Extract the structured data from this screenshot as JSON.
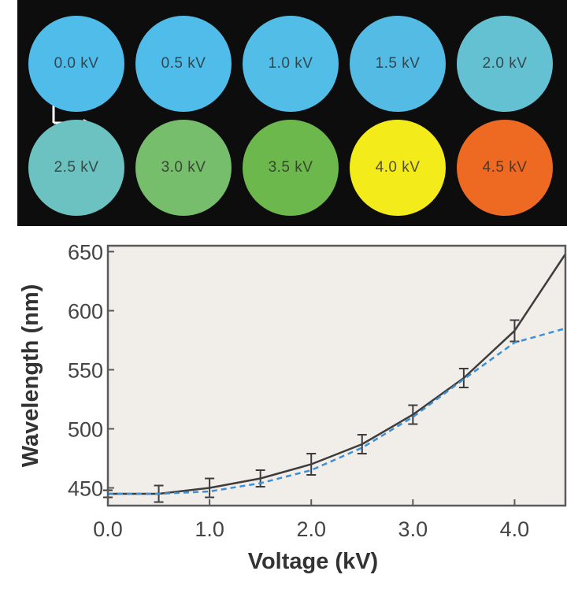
{
  "colors": {
    "panel_bg": "#0d0d0d",
    "plot_bg": "#f1eeea",
    "frame": "#5a5a5a",
    "fit_line": "#3d3d3d",
    "model_line": "#3d8fd6",
    "error_bar": "#3d3d3d"
  },
  "swatches": [
    {
      "label": "0.0 kV",
      "color": "#4fbcea"
    },
    {
      "label": "0.5 kV",
      "color": "#4fbcea"
    },
    {
      "label": "1.0 kV",
      "color": "#52bde6"
    },
    {
      "label": "1.5 kV",
      "color": "#54bbe4"
    },
    {
      "label": "2.0 kV",
      "color": "#64c1d2"
    },
    {
      "label": "2.5 kV",
      "color": "#6cc2c0"
    },
    {
      "label": "3.0 kV",
      "color": "#76bd6c"
    },
    {
      "label": "3.5 kV",
      "color": "#6cb84c"
    },
    {
      "label": "4.0 kV",
      "color": "#f3ec1a"
    },
    {
      "label": "4.5 kV",
      "color": "#ee6a22"
    }
  ],
  "chart_data": {
    "type": "line",
    "xlabel": "Voltage (kV)",
    "ylabel": "Wavelength (nm)",
    "xlim": [
      0,
      4.5
    ],
    "ylim": [
      435,
      655
    ],
    "x_ticks": [
      "0.0",
      "1.0",
      "2.0",
      "3.0",
      "4.0"
    ],
    "y_ticks": [
      "450",
      "500",
      "550",
      "600",
      "650"
    ],
    "grid": false,
    "series": [
      {
        "style": "solid",
        "x": [
          0.0,
          0.5,
          1.0,
          1.5,
          2.0,
          2.5,
          3.0,
          3.5,
          4.0,
          4.5
        ],
        "y": [
          445,
          445,
          450,
          458,
          470,
          487,
          512,
          543,
          583,
          648
        ],
        "error": [
          3,
          7,
          8,
          7,
          9,
          8,
          8,
          8,
          9,
          0
        ]
      },
      {
        "style": "dashed",
        "x": [
          0.0,
          0.5,
          1.0,
          1.5,
          2.0,
          2.5,
          3.0,
          3.5,
          4.0,
          4.5
        ],
        "y": [
          445,
          445,
          447,
          454,
          465,
          484,
          510,
          542,
          573,
          585
        ]
      }
    ]
  }
}
